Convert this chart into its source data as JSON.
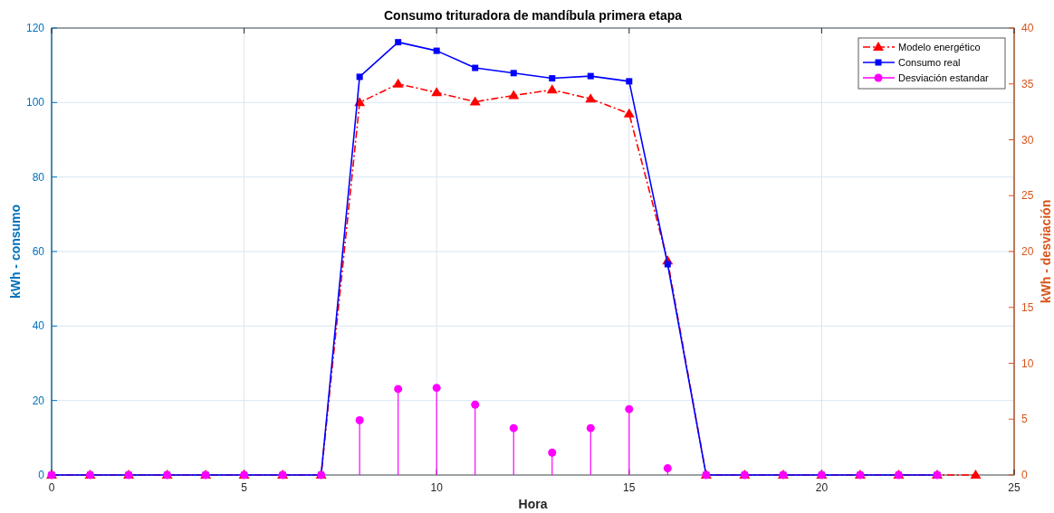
{
  "chart_data": {
    "type": "line",
    "title": "Consumo trituradora de mandíbula primera etapa",
    "xlabel": "Hora",
    "ylabel": "kWh - consumo",
    "y2label": "kWh - desviación",
    "x": [
      0,
      1,
      2,
      3,
      4,
      5,
      6,
      7,
      8,
      9,
      10,
      11,
      12,
      13,
      14,
      15,
      16,
      17,
      18,
      19,
      20,
      21,
      22,
      23,
      24
    ],
    "xlim": [
      0,
      25
    ],
    "xticks": [
      0,
      5,
      10,
      15,
      20,
      25
    ],
    "ylim": [
      0,
      120
    ],
    "yticks": [
      0,
      20,
      40,
      60,
      80,
      100,
      120
    ],
    "y2lim": [
      0,
      40
    ],
    "y2ticks": [
      0,
      5,
      10,
      15,
      20,
      25,
      30,
      35,
      40
    ],
    "grid": true,
    "legend": "top right",
    "series": [
      {
        "name": "Modelo energético",
        "color": "#ff0000",
        "marker": "triangle",
        "line_style": "dashdot",
        "values": [
          0,
          0,
          0,
          0,
          0,
          0,
          0,
          0,
          100,
          105,
          102.7,
          100.2,
          101.9,
          103.4,
          101,
          97,
          57.5,
          0,
          0,
          0,
          0,
          0,
          0,
          0,
          0
        ]
      },
      {
        "name": "Consumo real",
        "color": "#0000ff",
        "marker": "square",
        "line_style": "solid",
        "values": [
          0,
          0,
          0,
          0,
          0,
          0,
          0,
          0,
          106.9,
          116.2,
          113.9,
          109.3,
          107.9,
          106.5,
          107.1,
          105.7,
          56.6,
          0,
          0,
          0,
          0,
          0,
          0,
          0,
          null
        ]
      },
      {
        "name": "Desviación estandar",
        "type": "lollipop",
        "axis": "y2",
        "color": "#ff00ff",
        "marker": "circle",
        "values": [
          0,
          0,
          0,
          0,
          0,
          0,
          0,
          0,
          4.9,
          7.7,
          7.8,
          6.3,
          4.2,
          2,
          4.2,
          5.9,
          0.6,
          0,
          0,
          0,
          0,
          0,
          0,
          0,
          null
        ]
      }
    ]
  }
}
